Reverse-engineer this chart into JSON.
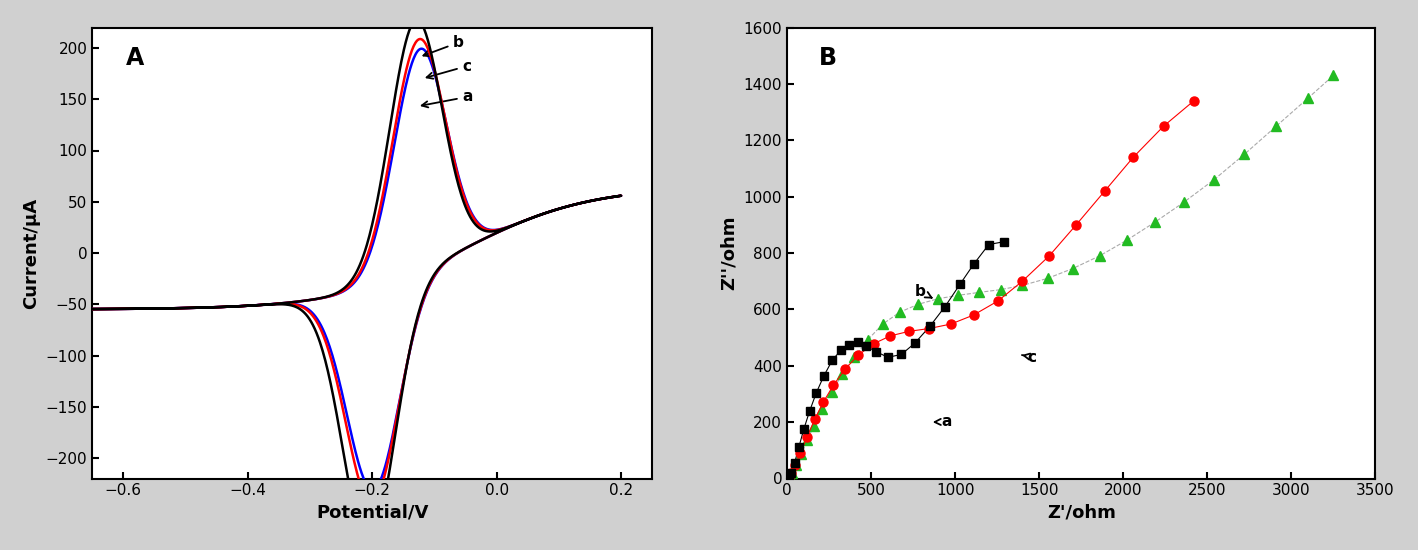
{
  "panel_A": {
    "title": "A",
    "xlabel": "Potential/V",
    "ylabel": "Current/μA",
    "xlim": [
      -0.65,
      0.25
    ],
    "ylim": [
      -220,
      220
    ],
    "xticks": [
      -0.6,
      -0.4,
      -0.2,
      0.0,
      0.2
    ],
    "yticks": [
      -200,
      -150,
      -100,
      -50,
      0,
      50,
      100,
      150,
      200
    ]
  },
  "panel_B": {
    "title": "B",
    "xlabel": "Z'/ohm",
    "ylabel": "Z''/ohm",
    "xlim": [
      0,
      3500
    ],
    "ylim": [
      0,
      1600
    ],
    "xticks": [
      0,
      500,
      1000,
      1500,
      2000,
      2500,
      3000,
      3500
    ],
    "yticks": [
      0,
      200,
      400,
      600,
      800,
      1000,
      1200,
      1400,
      1600
    ]
  },
  "background_color": "#d0d0d0"
}
